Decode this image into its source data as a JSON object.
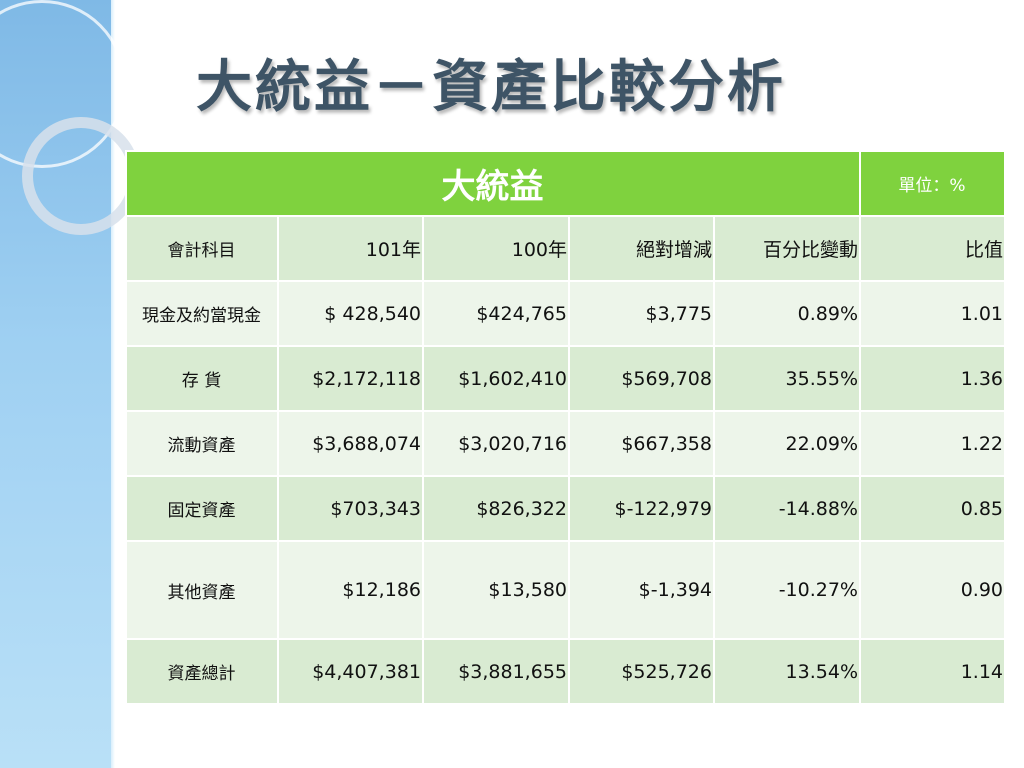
{
  "slide": {
    "title": "大統益－資產比較分析"
  },
  "table": {
    "company": "大統益",
    "unit": "單位：%",
    "columns": [
      "會計科目",
      "101年",
      "100年",
      "絕對增減",
      "百分比變動",
      "比值"
    ],
    "rows": [
      {
        "item": "現金及約當現金",
        "y101": "$ 428,540",
        "y100": "$424,765",
        "abs": "$3,775",
        "pct": "0.89%",
        "ratio": "1.01"
      },
      {
        "item": "存 貨",
        "y101": "$2,172,118",
        "y100": "$1,602,410",
        "abs": "$569,708",
        "pct": "35.55%",
        "ratio": "1.36"
      },
      {
        "item": "流動資產",
        "y101": "$3,688,074",
        "y100": "$3,020,716",
        "abs": "$667,358",
        "pct": "22.09%",
        "ratio": "1.22"
      },
      {
        "item": "固定資產",
        "y101": "$703,343",
        "y100": "$826,322",
        "abs": "$-122,979",
        "pct": "-14.88%",
        "ratio": "0.85"
      },
      {
        "item": "其他資產",
        "y101": "$12,186",
        "y100": "$13,580",
        "abs": "$-1,394",
        "pct": "-10.27%",
        "ratio": "0.90"
      },
      {
        "item": "資產總計",
        "y101": "$4,407,381",
        "y100": "$3,881,655",
        "abs": "$525,726",
        "pct": "13.54%",
        "ratio": "1.14"
      }
    ]
  },
  "colors": {
    "header_green": "#7fd23e",
    "row_dark": "#d9ebd2",
    "row_light": "#edf5ea",
    "title": "#3e5466",
    "side_band": "#9fd0f2"
  }
}
